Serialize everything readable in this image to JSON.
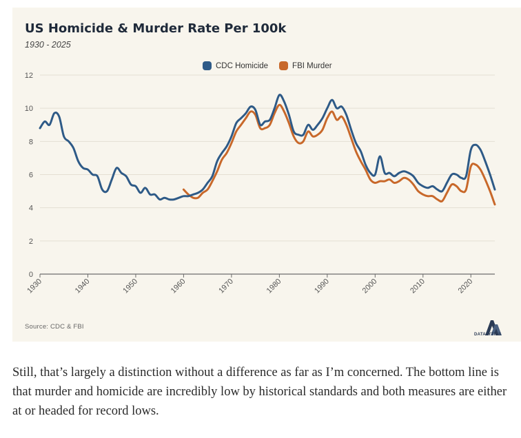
{
  "chart_data": {
    "type": "line",
    "title": "US Homicide & Murder Rate Per 100k",
    "subtitle": "1930 - 2025",
    "xlabel": "",
    "ylabel": "",
    "xlim": [
      1930,
      2025
    ],
    "ylim": [
      0,
      12
    ],
    "x_ticks": [
      1930,
      1940,
      1950,
      1960,
      1970,
      1980,
      1990,
      2000,
      2010,
      2020
    ],
    "y_ticks": [
      0,
      2,
      4,
      6,
      8,
      10,
      12
    ],
    "grid": true,
    "legend_position": "top-center",
    "series": [
      {
        "name": "CDC Homicide",
        "color": "#2e5a87",
        "points": [
          [
            1930,
            8.8
          ],
          [
            1931,
            9.2
          ],
          [
            1932,
            9.0
          ],
          [
            1933,
            9.7
          ],
          [
            1934,
            9.5
          ],
          [
            1935,
            8.3
          ],
          [
            1936,
            8.0
          ],
          [
            1937,
            7.6
          ],
          [
            1938,
            6.8
          ],
          [
            1939,
            6.4
          ],
          [
            1940,
            6.3
          ],
          [
            1941,
            6.0
          ],
          [
            1942,
            5.9
          ],
          [
            1943,
            5.1
          ],
          [
            1944,
            5.0
          ],
          [
            1945,
            5.7
          ],
          [
            1946,
            6.4
          ],
          [
            1947,
            6.1
          ],
          [
            1948,
            5.9
          ],
          [
            1949,
            5.4
          ],
          [
            1950,
            5.3
          ],
          [
            1951,
            4.9
          ],
          [
            1952,
            5.2
          ],
          [
            1953,
            4.8
          ],
          [
            1954,
            4.8
          ],
          [
            1955,
            4.5
          ],
          [
            1956,
            4.6
          ],
          [
            1957,
            4.5
          ],
          [
            1958,
            4.5
          ],
          [
            1959,
            4.6
          ],
          [
            1960,
            4.7
          ],
          [
            1961,
            4.7
          ],
          [
            1962,
            4.8
          ],
          [
            1963,
            4.9
          ],
          [
            1964,
            5.1
          ],
          [
            1965,
            5.5
          ],
          [
            1966,
            5.9
          ],
          [
            1967,
            6.8
          ],
          [
            1968,
            7.3
          ],
          [
            1969,
            7.7
          ],
          [
            1970,
            8.3
          ],
          [
            1971,
            9.1
          ],
          [
            1972,
            9.4
          ],
          [
            1973,
            9.7
          ],
          [
            1974,
            10.1
          ],
          [
            1975,
            9.9
          ],
          [
            1976,
            9.0
          ],
          [
            1977,
            9.2
          ],
          [
            1978,
            9.3
          ],
          [
            1979,
            10.0
          ],
          [
            1980,
            10.8
          ],
          [
            1981,
            10.4
          ],
          [
            1982,
            9.6
          ],
          [
            1983,
            8.6
          ],
          [
            1984,
            8.4
          ],
          [
            1985,
            8.4
          ],
          [
            1986,
            9.0
          ],
          [
            1987,
            8.7
          ],
          [
            1988,
            9.0
          ],
          [
            1989,
            9.4
          ],
          [
            1990,
            10.0
          ],
          [
            1991,
            10.5
          ],
          [
            1992,
            10.0
          ],
          [
            1993,
            10.1
          ],
          [
            1994,
            9.6
          ],
          [
            1995,
            8.7
          ],
          [
            1996,
            7.9
          ],
          [
            1997,
            7.4
          ],
          [
            1998,
            6.6
          ],
          [
            1999,
            6.1
          ],
          [
            2000,
            6.0
          ],
          [
            2001,
            7.1
          ],
          [
            2002,
            6.1
          ],
          [
            2003,
            6.1
          ],
          [
            2004,
            5.9
          ],
          [
            2005,
            6.1
          ],
          [
            2006,
            6.2
          ],
          [
            2007,
            6.1
          ],
          [
            2008,
            5.9
          ],
          [
            2009,
            5.5
          ],
          [
            2010,
            5.3
          ],
          [
            2011,
            5.2
          ],
          [
            2012,
            5.3
          ],
          [
            2013,
            5.1
          ],
          [
            2014,
            5.0
          ],
          [
            2015,
            5.5
          ],
          [
            2016,
            6.0
          ],
          [
            2017,
            6.0
          ],
          [
            2018,
            5.8
          ],
          [
            2019,
            5.9
          ],
          [
            2020,
            7.5
          ],
          [
            2021,
            7.8
          ],
          [
            2022,
            7.5
          ],
          [
            2023,
            6.8
          ],
          [
            2024,
            6.0
          ],
          [
            2025,
            5.1
          ]
        ]
      },
      {
        "name": "FBI Murder",
        "color": "#c8682a",
        "points": [
          [
            1960,
            5.1
          ],
          [
            1961,
            4.8
          ],
          [
            1962,
            4.6
          ],
          [
            1963,
            4.6
          ],
          [
            1964,
            4.9
          ],
          [
            1965,
            5.1
          ],
          [
            1966,
            5.6
          ],
          [
            1967,
            6.2
          ],
          [
            1968,
            6.9
          ],
          [
            1969,
            7.3
          ],
          [
            1970,
            7.9
          ],
          [
            1971,
            8.6
          ],
          [
            1972,
            9.0
          ],
          [
            1973,
            9.4
          ],
          [
            1974,
            9.8
          ],
          [
            1975,
            9.6
          ],
          [
            1976,
            8.8
          ],
          [
            1977,
            8.8
          ],
          [
            1978,
            9.0
          ],
          [
            1979,
            9.7
          ],
          [
            1980,
            10.2
          ],
          [
            1981,
            9.8
          ],
          [
            1982,
            9.1
          ],
          [
            1983,
            8.3
          ],
          [
            1984,
            7.9
          ],
          [
            1985,
            8.0
          ],
          [
            1986,
            8.6
          ],
          [
            1987,
            8.3
          ],
          [
            1988,
            8.4
          ],
          [
            1989,
            8.7
          ],
          [
            1990,
            9.4
          ],
          [
            1991,
            9.8
          ],
          [
            1992,
            9.3
          ],
          [
            1993,
            9.5
          ],
          [
            1994,
            9.0
          ],
          [
            1995,
            8.2
          ],
          [
            1996,
            7.4
          ],
          [
            1997,
            6.8
          ],
          [
            1998,
            6.3
          ],
          [
            1999,
            5.7
          ],
          [
            2000,
            5.5
          ],
          [
            2001,
            5.6
          ],
          [
            2002,
            5.6
          ],
          [
            2003,
            5.7
          ],
          [
            2004,
            5.5
          ],
          [
            2005,
            5.6
          ],
          [
            2006,
            5.8
          ],
          [
            2007,
            5.7
          ],
          [
            2008,
            5.4
          ],
          [
            2009,
            5.0
          ],
          [
            2010,
            4.8
          ],
          [
            2011,
            4.7
          ],
          [
            2012,
            4.7
          ],
          [
            2013,
            4.5
          ],
          [
            2014,
            4.4
          ],
          [
            2015,
            4.9
          ],
          [
            2016,
            5.4
          ],
          [
            2017,
            5.3
          ],
          [
            2018,
            5.0
          ],
          [
            2019,
            5.1
          ],
          [
            2020,
            6.5
          ],
          [
            2021,
            6.6
          ],
          [
            2022,
            6.3
          ],
          [
            2023,
            5.7
          ],
          [
            2024,
            5.0
          ],
          [
            2025,
            4.2
          ]
        ]
      }
    ]
  },
  "footer": {
    "source": "Source: CDC & FBI",
    "logo_text": "DATALYTICS"
  },
  "body_text": "Still, that’s largely a distinction without a difference as far as I’m concerned. The bottom line is that murder and homicide are incredibly low by historical standards and both measures are either at or headed for record lows."
}
